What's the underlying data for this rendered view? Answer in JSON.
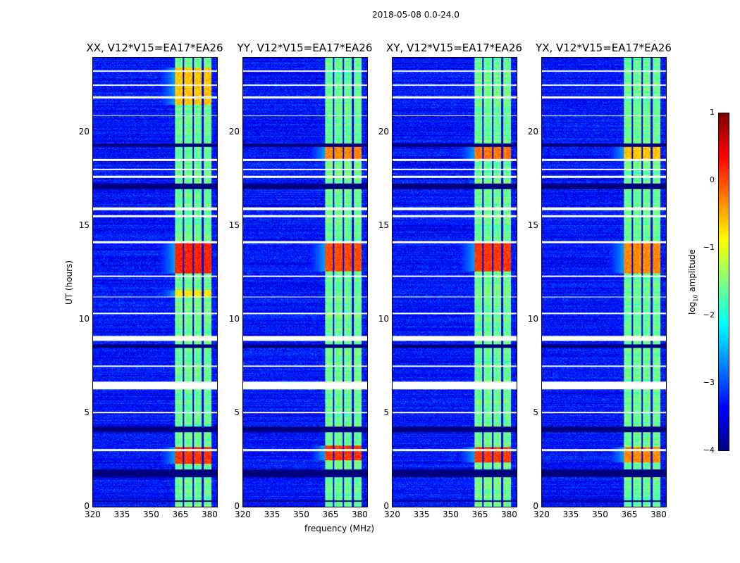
{
  "chart_data": {
    "type": "heatmap",
    "suptitle": "2018-05-08 0.0-24.0",
    "xlabel": "frequency (MHz)",
    "ylabel": "UT (hours)",
    "xlim": [
      320,
      384
    ],
    "ylim": [
      0,
      24
    ],
    "xticks": [
      "320",
      "335",
      "350",
      "365",
      "380"
    ],
    "xtick_values": [
      320,
      335,
      350,
      365,
      380
    ],
    "yticks": [
      "0",
      "5",
      "10",
      "15",
      "20"
    ],
    "ytick_values": [
      0,
      5,
      10,
      15,
      20
    ],
    "panels": [
      {
        "title": "XX, V12*V15=EA17*EA26",
        "bursts": [
          [
            21.5,
            23.5,
            -0.6
          ],
          [
            12.5,
            14.2,
            0.2
          ],
          [
            2.3,
            3.2,
            0.1
          ],
          [
            11.2,
            11.6,
            -0.8
          ]
        ]
      },
      {
        "title": "YY, V12*V15=EA17*EA26",
        "bursts": [
          [
            18.6,
            19.3,
            -0.3
          ],
          [
            12.6,
            14.2,
            0.0
          ],
          [
            2.5,
            3.3,
            0.1
          ]
        ]
      },
      {
        "title": "XY, V12*V15=EA17*EA26",
        "bursts": [
          [
            18.6,
            19.3,
            -0.2
          ],
          [
            12.6,
            14.2,
            0.1
          ],
          [
            2.4,
            3.2,
            0.1
          ]
        ]
      },
      {
        "title": "YX, V12*V15=EA17*EA26",
        "bursts": [
          [
            18.6,
            19.3,
            -0.6
          ],
          [
            12.5,
            14.2,
            -0.3
          ],
          [
            2.4,
            3.2,
            -0.3
          ]
        ]
      }
    ],
    "band_mhz": [
      362,
      381
    ],
    "band_dividers_mhz": [
      366.5,
      371.5,
      376.5
    ],
    "background_level": -3.3,
    "band_level": -1.6,
    "flagged_white_ut": [
      [
        23.25,
        23.35
      ],
      [
        22.5,
        22.58
      ],
      [
        21.85,
        21.95
      ],
      [
        20.9,
        20.95
      ],
      [
        18.5,
        18.6
      ],
      [
        18.0,
        18.08
      ],
      [
        17.6,
        17.7
      ],
      [
        15.85,
        16.0
      ],
      [
        15.5,
        15.6
      ],
      [
        14.1,
        14.2
      ],
      [
        12.3,
        12.38
      ],
      [
        11.2,
        11.26
      ],
      [
        10.3,
        10.38
      ],
      [
        8.9,
        9.15
      ],
      [
        7.5,
        7.58
      ],
      [
        6.3,
        6.7
      ],
      [
        5.0,
        5.08
      ],
      [
        3.0,
        3.08
      ]
    ],
    "flagged_black_ut": [
      [
        19.25,
        19.45
      ],
      [
        17.0,
        17.3
      ],
      [
        8.5,
        8.7
      ],
      [
        4.0,
        4.3
      ],
      [
        1.6,
        2.0
      ],
      [
        0.3,
        0.36
      ]
    ],
    "colorbar": {
      "label": "log10 amplitude",
      "label_main": "log",
      "label_sub": "10",
      "label_rest": " amplitude",
      "ticks": [
        "1",
        "0",
        "−1",
        "−2",
        "−3",
        "−4"
      ],
      "tick_values": [
        1,
        0,
        -1,
        -2,
        -3,
        -4
      ],
      "range": [
        -4,
        1
      ],
      "colormap": "jet"
    }
  }
}
